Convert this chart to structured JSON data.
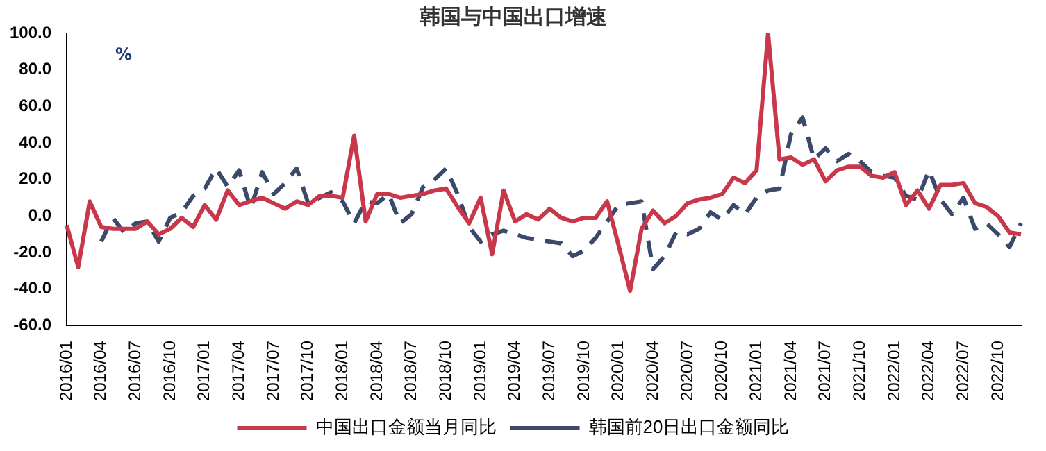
{
  "chart_data": {
    "type": "line",
    "title": "韩国与中国出口增速",
    "annotations": [
      "%"
    ],
    "categories": [
      "2016/01",
      null,
      null,
      "2016/04",
      null,
      null,
      "2016/07",
      null,
      null,
      "2016/10",
      null,
      null,
      "2017/01",
      null,
      null,
      "2017/04",
      null,
      null,
      "2017/07",
      null,
      null,
      "2017/10",
      null,
      null,
      "2018/01",
      null,
      null,
      "2018/04",
      null,
      null,
      "2018/07",
      null,
      null,
      "2018/10",
      null,
      null,
      "2019/01",
      null,
      null,
      "2019/04",
      null,
      null,
      "2019/07",
      null,
      null,
      "2019/10",
      null,
      null,
      "2020/01",
      null,
      null,
      "2020/04",
      null,
      null,
      "2020/07",
      null,
      null,
      "2020/10",
      null,
      null,
      "2021/01",
      null,
      null,
      "2021/04",
      null,
      null,
      "2021/07",
      null,
      null,
      "2021/10",
      null,
      null,
      "2022/01",
      null,
      null,
      "2022/04",
      null,
      null,
      "2022/07",
      null,
      null,
      "2022/10",
      null,
      null
    ],
    "series": [
      {
        "name": "中国出口金额当月同比",
        "color": "#c8374a",
        "line_style": "solid",
        "values": [
          -5,
          -28,
          8,
          -6,
          -7,
          -7,
          -7,
          -3,
          -10,
          -7,
          -1,
          -6,
          6,
          -2,
          14,
          6,
          8,
          10,
          7,
          4,
          8,
          6,
          11,
          11,
          10,
          44,
          -3,
          12,
          12,
          10,
          11,
          12,
          14,
          15,
          5,
          -4,
          10,
          -21,
          14,
          -3,
          1,
          -2,
          4,
          -1,
          -3,
          -1,
          -1,
          8,
          -16,
          -41,
          -7,
          3,
          -4,
          0,
          7,
          9,
          10,
          12,
          21,
          18,
          25,
          100,
          31,
          32,
          28,
          31,
          19,
          25,
          27,
          27,
          22,
          21,
          24,
          6,
          14,
          4,
          17,
          17,
          18,
          7,
          5,
          0,
          -9,
          -10
        ]
      },
      {
        "name": "韩国前20日出口金额同比",
        "color": "#3b4a6b",
        "line_style": "dashed",
        "values": [
          null,
          null,
          null,
          -14,
          -1,
          -9,
          -4,
          -3,
          -14,
          -1,
          2,
          11,
          15,
          26,
          16,
          25,
          4,
          24,
          12,
          18,
          26,
          7,
          10,
          13,
          8,
          -4,
          8,
          7,
          12,
          -4,
          1,
          16,
          20,
          26,
          12,
          -6,
          -14,
          -10,
          -8,
          -10,
          -12,
          -13,
          -14,
          -15,
          -22,
          -19,
          -12,
          -3,
          6,
          7,
          8,
          -29,
          -22,
          -9,
          -10,
          -7,
          2,
          -2,
          6,
          1,
          10,
          14,
          15,
          45,
          54,
          31,
          37,
          30,
          34,
          30,
          24,
          22,
          21,
          11,
          9,
          25,
          9,
          1,
          10,
          -7,
          -4,
          -10,
          -17,
          -4
        ]
      }
    ],
    "ylim": [
      -60,
      100
    ],
    "yticks": [
      {
        "value": -60,
        "label": "-60.0"
      },
      {
        "value": -40,
        "label": "-40.0"
      },
      {
        "value": -20,
        "label": "-20.0"
      },
      {
        "value": 0,
        "label": "0.0"
      },
      {
        "value": 20,
        "label": "20.0"
      },
      {
        "value": 40,
        "label": "40.0"
      },
      {
        "value": 60,
        "label": "60.0"
      },
      {
        "value": 80,
        "label": "80.0"
      },
      {
        "value": 100,
        "label": "100.0"
      }
    ],
    "grid": false,
    "legend": "bottom",
    "marker": "none"
  }
}
